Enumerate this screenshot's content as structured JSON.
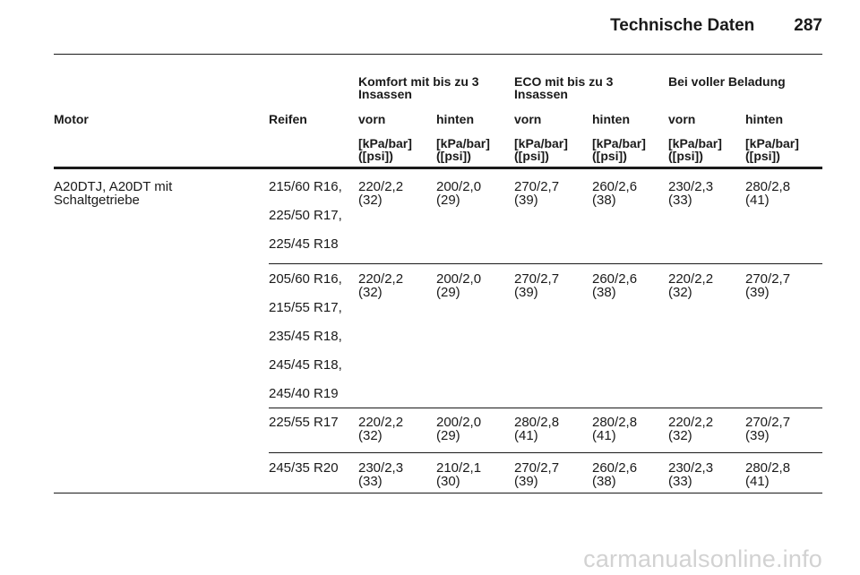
{
  "header": {
    "section_title": "Technische Daten",
    "page_number": "287"
  },
  "table": {
    "groups": [
      "Komfort mit bis zu 3\nInsassen",
      "ECO mit bis zu 3\nInsassen",
      "Bei voller Beladung"
    ],
    "col_motor": "Motor",
    "col_tyres": "Reifen",
    "sub": [
      "vorn",
      "hinten",
      "vorn",
      "hinten",
      "vorn",
      "hinten"
    ],
    "unit": "[kPa/bar]\n([psi])",
    "motor": "A20DTJ, A20DT mit\nSchaltgetriebe",
    "blocks": [
      {
        "tyres": [
          "215/60 R16,",
          "225/50 R17,",
          "225/45 R18"
        ],
        "values": [
          "220/2,2\n(32)",
          "200/2,0\n(29)",
          "270/2,7\n(39)",
          "260/2,6\n(38)",
          "230/2,3\n(33)",
          "280/2,8\n(41)"
        ]
      },
      {
        "tyres": [
          "205/60 R16,",
          "215/55 R17,",
          "235/45 R18,",
          "245/45 R18,",
          "245/40 R19"
        ],
        "values": [
          "220/2,2\n(32)",
          "200/2,0\n(29)",
          "270/2,7\n(39)",
          "260/2,6\n(38)",
          "220/2,2\n(32)",
          "270/2,7\n(39)"
        ]
      },
      {
        "tyres": [
          "225/55 R17"
        ],
        "values": [
          "220/2,2\n(32)",
          "200/2,0\n(29)",
          "280/2,8\n(41)",
          "280/2,8\n(41)",
          "220/2,2\n(32)",
          "270/2,7\n(39)"
        ]
      },
      {
        "tyres": [
          "245/35 R20"
        ],
        "values": [
          "230/2,3\n(33)",
          "210/2,1\n(30)",
          "270/2,7\n(39)",
          "260/2,6\n(38)",
          "230/2,3\n(33)",
          "280/2,8\n(41)"
        ]
      }
    ]
  },
  "watermark": "carmanualsonline.info"
}
